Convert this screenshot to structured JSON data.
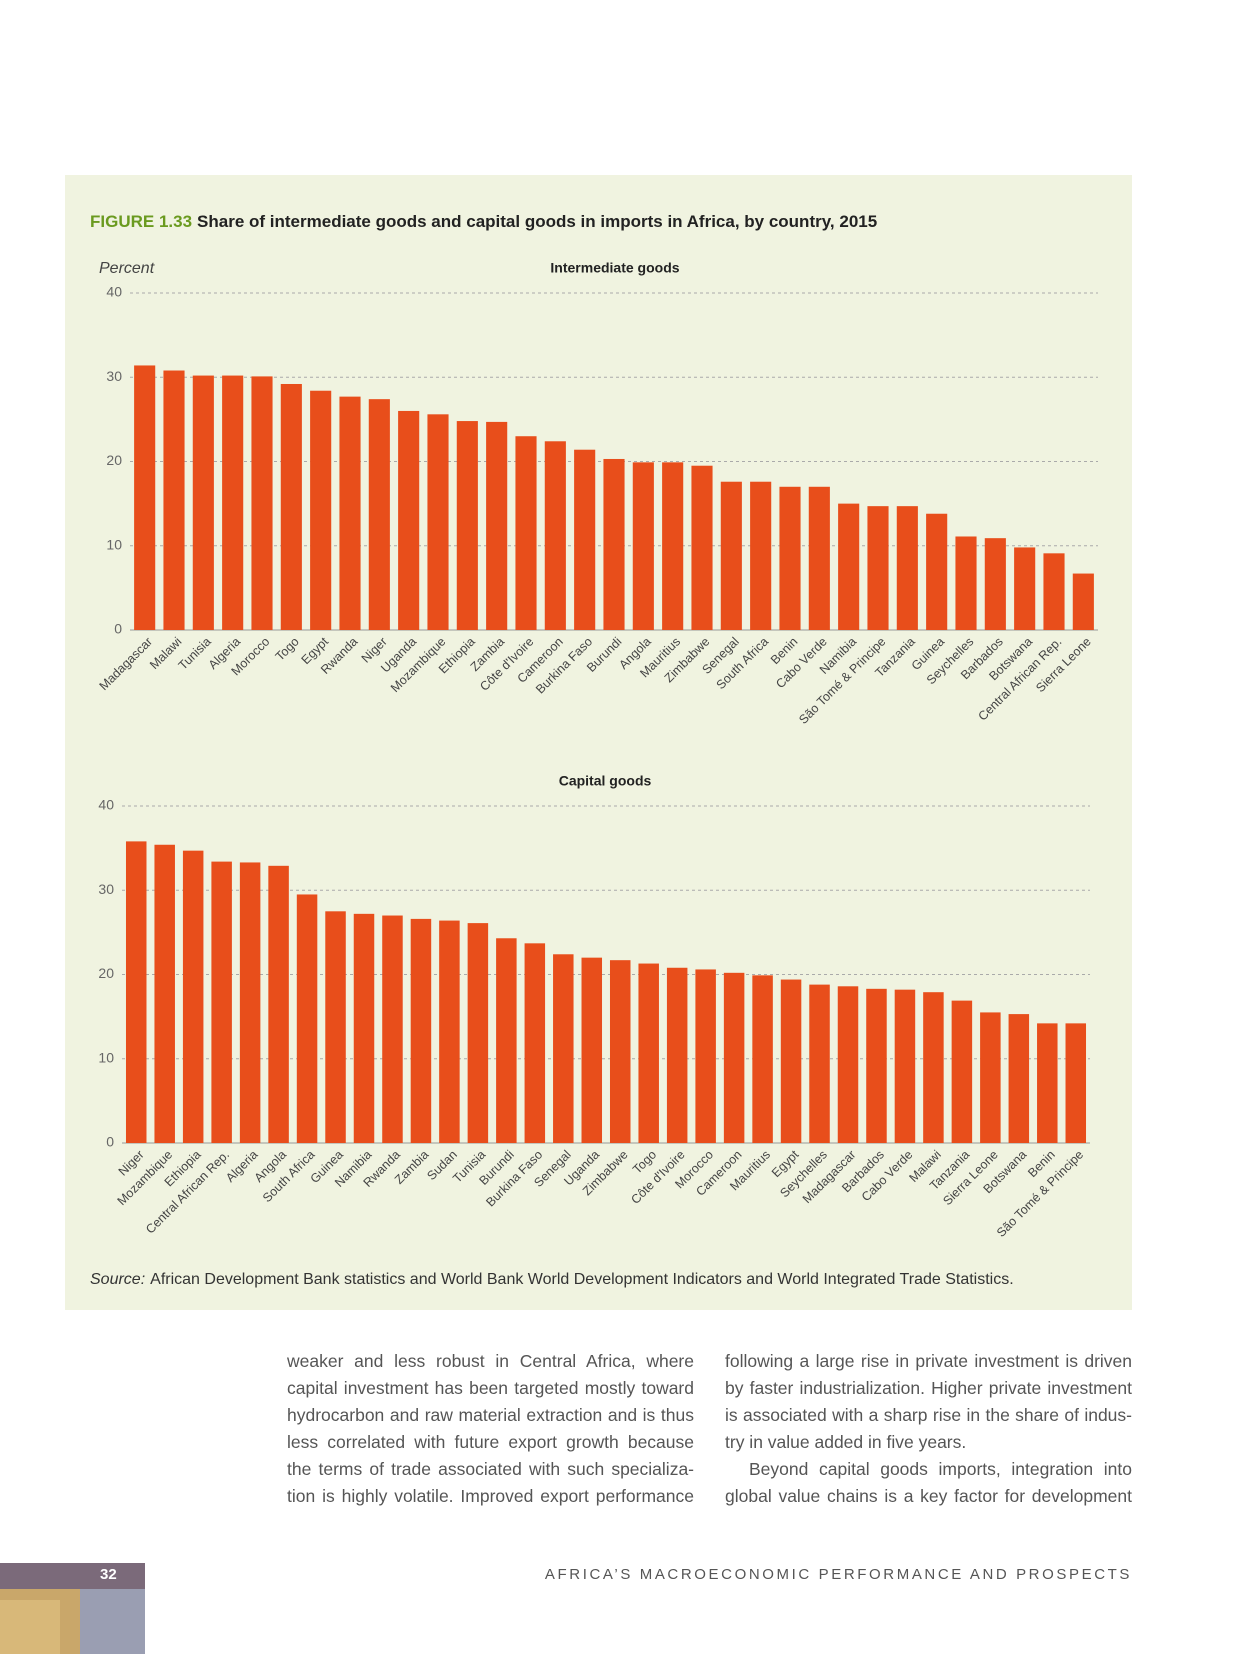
{
  "figure": {
    "label": "FIGURE 1.33",
    "title": "Share of intermediate goods and capital goods in imports in Africa, by country, 2015"
  },
  "chart_data": [
    {
      "type": "bar",
      "title": "Intermediate goods",
      "ylabel": "Percent",
      "categories": [
        "Madagascar",
        "Malawi",
        "Tunisia",
        "Algeria",
        "Morocco",
        "Togo",
        "Egypt",
        "Rwanda",
        "Niger",
        "Uganda",
        "Mozambique",
        "Ethiopia",
        "Zambia",
        "Côte d'Ivoire",
        "Cameroon",
        "Burkina Faso",
        "Burundi",
        "Angola",
        "Mauritius",
        "Zimbabwe",
        "Senegal",
        "South Africa",
        "Benin",
        "Cabo Verde",
        "Namibia",
        "São Tomé & Principe",
        "Tanzania",
        "Guinea",
        "Seychelles",
        "Barbados",
        "Botswana",
        "Central African Rep.",
        "Sierra Leone"
      ],
      "values": [
        31.4,
        30.8,
        30.2,
        30.2,
        30.1,
        29.2,
        28.4,
        27.7,
        27.4,
        26.0,
        25.6,
        24.8,
        24.7,
        23.0,
        22.4,
        21.4,
        20.3,
        19.9,
        19.9,
        19.5,
        17.6,
        17.6,
        17.0,
        17.0,
        15.0,
        14.7,
        14.7,
        13.8,
        11.1,
        10.9,
        9.8,
        9.1,
        6.7
      ],
      "color": "#e84e1b",
      "ylim": [
        0,
        40
      ],
      "yticks": [
        0,
        10,
        20,
        30,
        40
      ],
      "grid": true
    },
    {
      "type": "bar",
      "title": "Capital goods",
      "categories": [
        "Niger",
        "Mozambique",
        "Ethiopia",
        "Central African Rep.",
        "Algeria",
        "Angola",
        "South Africa",
        "Guinea",
        "Namibia",
        "Rwanda",
        "Zambia",
        "Sudan",
        "Tunisia",
        "Burundi",
        "Burkina Faso",
        "Senegal",
        "Uganda",
        "Zimbabwe",
        "Togo",
        "Côte d'Ivoire",
        "Morocco",
        "Cameroon",
        "Mauritius",
        "Egypt",
        "Seychelles",
        "Madagascar",
        "Barbados",
        "Cabo Verde",
        "Malawi",
        "Tanzania",
        "Sierra Leone",
        "Botswana",
        "Benin",
        "São Tomé & Principe"
      ],
      "values": [
        35.8,
        35.4,
        34.7,
        33.4,
        33.3,
        32.9,
        29.5,
        27.5,
        27.2,
        27.0,
        26.6,
        26.4,
        26.1,
        24.3,
        23.7,
        22.4,
        22.0,
        21.7,
        21.3,
        20.8,
        20.6,
        20.2,
        19.9,
        19.4,
        18.8,
        18.6,
        18.3,
        18.2,
        17.9,
        16.9,
        15.5,
        15.3,
        14.2,
        14.2
      ],
      "color": "#e84e1b",
      "ylim": [
        0,
        40
      ],
      "yticks": [
        0,
        10,
        20,
        30,
        40
      ],
      "grid": true
    }
  ],
  "source": {
    "label": "Source:",
    "text": "African Development Bank statistics and World Bank World Development Indicators and World Integrated Trade Statistics."
  },
  "body": {
    "columns": [
      [
        [
          "weaker and less robust in Central Africa, where",
          "capital investment has been targeted mostly toward",
          "hydrocarbon and raw material extraction and is thus",
          "less correlated with future export growth because",
          "the terms of trade associated with such specializa-",
          "tion is highly volatile. Improved export performance"
        ]
      ],
      [
        [
          "following a large rise in private investment is driven",
          "by faster industrialization. Higher private investment",
          "is associated with a sharp rise in the share of indus-",
          "try in value added in five years."
        ],
        [
          "Beyond capital goods imports, integration into",
          "global value chains is a key factor for development"
        ]
      ]
    ]
  },
  "footer": {
    "page_number": "32",
    "running_title": "AFRICA’S MACROECONOMIC PERFORMANCE AND PROSPECTS"
  }
}
